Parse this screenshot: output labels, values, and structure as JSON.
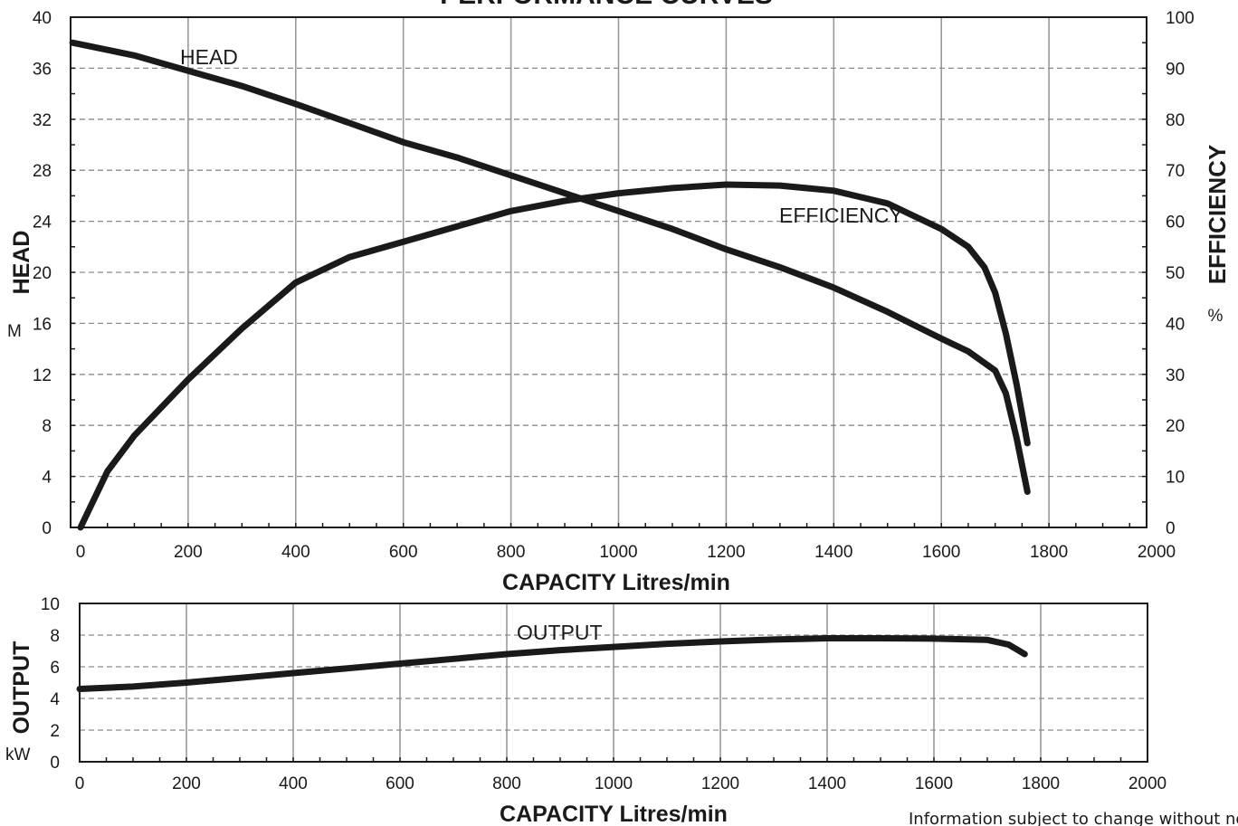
{
  "title": "PERFORMANCE CURVES",
  "footnote": "Information subject to change without notice",
  "chart_data": [
    {
      "type": "line",
      "xlabel": "CAPACITY Litres/min",
      "ylabel": "HEAD",
      "ylabel_unit": "M",
      "y2label": "EFFICIENCY",
      "y2label_unit": "%",
      "xlim": [
        0,
        2000
      ],
      "ylim": [
        0,
        40
      ],
      "y2lim": [
        0,
        100
      ],
      "x_ticks": [
        "0",
        "200",
        "400",
        "600",
        "800",
        "1000",
        "1200",
        "1400",
        "1600",
        "1800",
        "2000"
      ],
      "y_ticks": [
        "0",
        "4",
        "8",
        "12",
        "16",
        "20",
        "24",
        "28",
        "32",
        "36",
        "40"
      ],
      "y2_ticks": [
        "0",
        "10",
        "20",
        "30",
        "40",
        "50",
        "60",
        "70",
        "80",
        "90",
        "100"
      ],
      "grid": true,
      "series": [
        {
          "name": "HEAD",
          "axis": "left",
          "x": [
            -15,
            100,
            200,
            300,
            400,
            500,
            600,
            700,
            800,
            900,
            1000,
            1100,
            1200,
            1300,
            1400,
            1500,
            1600,
            1650,
            1700,
            1720,
            1740,
            1760
          ],
          "y": [
            38.0,
            37.0,
            35.8,
            34.6,
            33.2,
            31.7,
            30.2,
            29.0,
            27.6,
            26.2,
            24.8,
            23.4,
            21.8,
            20.4,
            18.8,
            16.9,
            14.8,
            13.8,
            12.3,
            10.5,
            7.0,
            2.8
          ]
        },
        {
          "name": "EFFICIENCY",
          "axis": "right",
          "x": [
            0,
            50,
            100,
            200,
            300,
            400,
            500,
            600,
            700,
            800,
            900,
            1000,
            1100,
            1200,
            1300,
            1400,
            1500,
            1600,
            1650,
            1680,
            1700,
            1720,
            1740,
            1760
          ],
          "y": [
            0,
            11,
            18,
            29,
            39,
            48,
            53,
            56,
            59,
            62,
            64,
            65.5,
            66.5,
            67.2,
            67.0,
            66.0,
            63.5,
            58.5,
            55.0,
            51.0,
            46.0,
            38.0,
            28.0,
            16.5
          ]
        }
      ]
    },
    {
      "type": "line",
      "xlabel": "CAPACITY Litres/min",
      "ylabel": "OUTPUT",
      "ylabel_unit": "kW",
      "xlim": [
        0,
        2000
      ],
      "ylim": [
        0,
        10
      ],
      "x_ticks": [
        "0",
        "200",
        "400",
        "600",
        "800",
        "1000",
        "1200",
        "1400",
        "1600",
        "1800",
        "2000"
      ],
      "y_ticks": [
        "0",
        "2",
        "4",
        "6",
        "8",
        "10"
      ],
      "grid": true,
      "series": [
        {
          "name": "OUTPUT",
          "x": [
            0,
            100,
            200,
            300,
            400,
            500,
            600,
            700,
            800,
            900,
            1000,
            1100,
            1200,
            1300,
            1400,
            1500,
            1600,
            1700,
            1740,
            1770
          ],
          "y": [
            4.6,
            4.75,
            5.0,
            5.3,
            5.6,
            5.9,
            6.2,
            6.5,
            6.8,
            7.05,
            7.25,
            7.45,
            7.6,
            7.72,
            7.8,
            7.8,
            7.78,
            7.7,
            7.4,
            6.8
          ]
        }
      ]
    }
  ]
}
